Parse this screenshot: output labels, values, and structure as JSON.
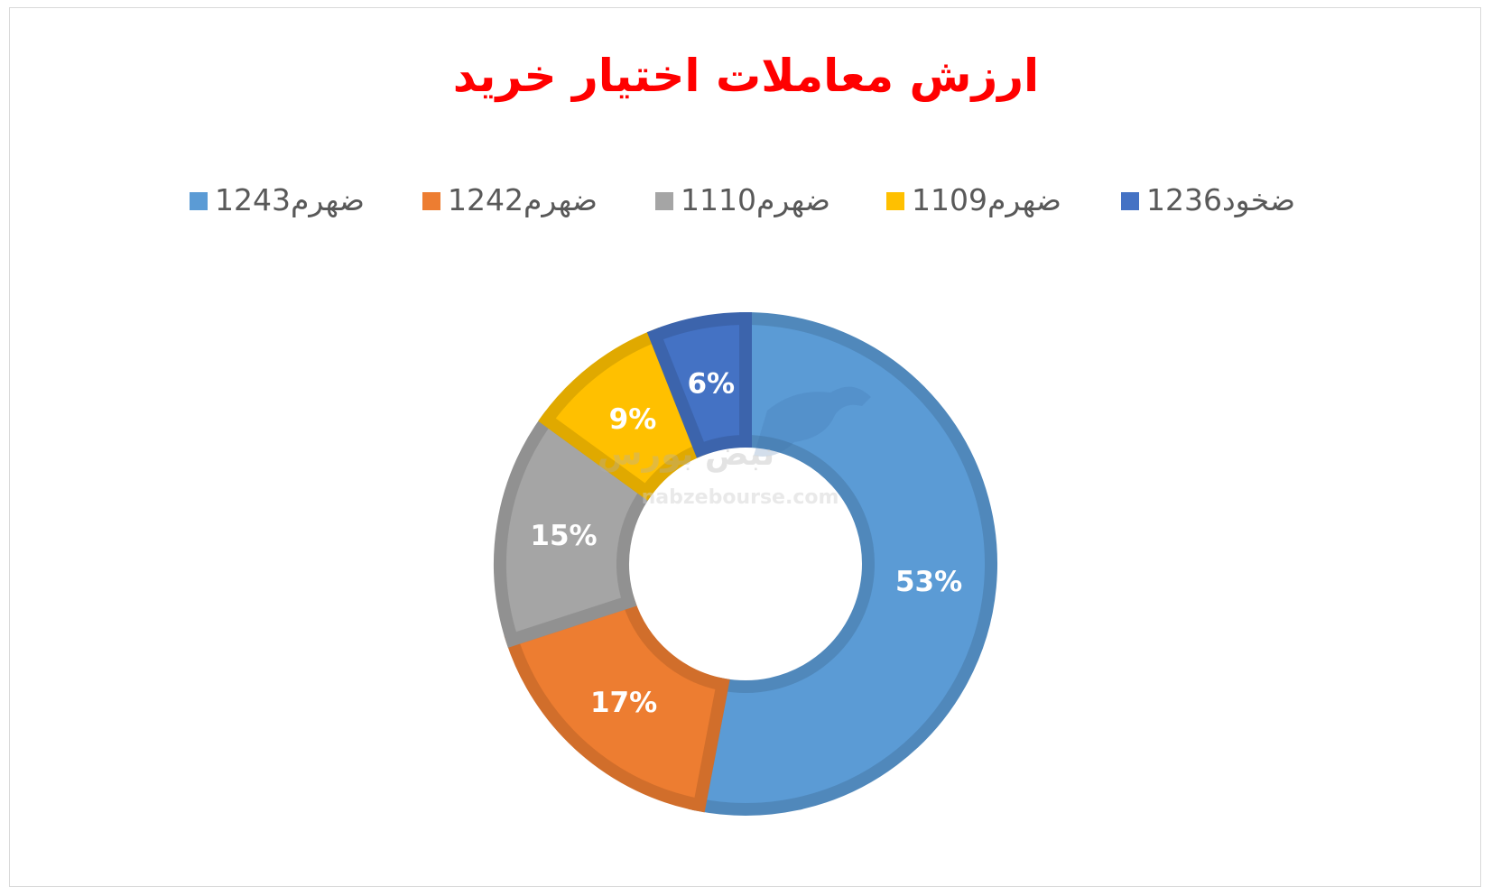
{
  "chart_data": {
    "type": "donut",
    "title": "ارزش معاملات اختیار خرید",
    "legend_position": "top",
    "series": [
      {
        "name": "ضهرم1243",
        "value": 53,
        "label": "53%",
        "color": "#5b9bd5"
      },
      {
        "name": "ضهرم1242",
        "value": 17,
        "label": "17%",
        "color": "#ed7d31"
      },
      {
        "name": "ضهرم1110",
        "value": 15,
        "label": "15%",
        "color": "#a5a5a5"
      },
      {
        "name": "ضهرم1109",
        "value": 9,
        "label": "9%",
        "color": "#ffc000"
      },
      {
        "name": "ضخود1236",
        "value": 6,
        "label": "6%",
        "color": "#4472c4"
      }
    ]
  },
  "watermark": {
    "text": "nabzebourse.com",
    "logo_text": "نبض بورس"
  }
}
